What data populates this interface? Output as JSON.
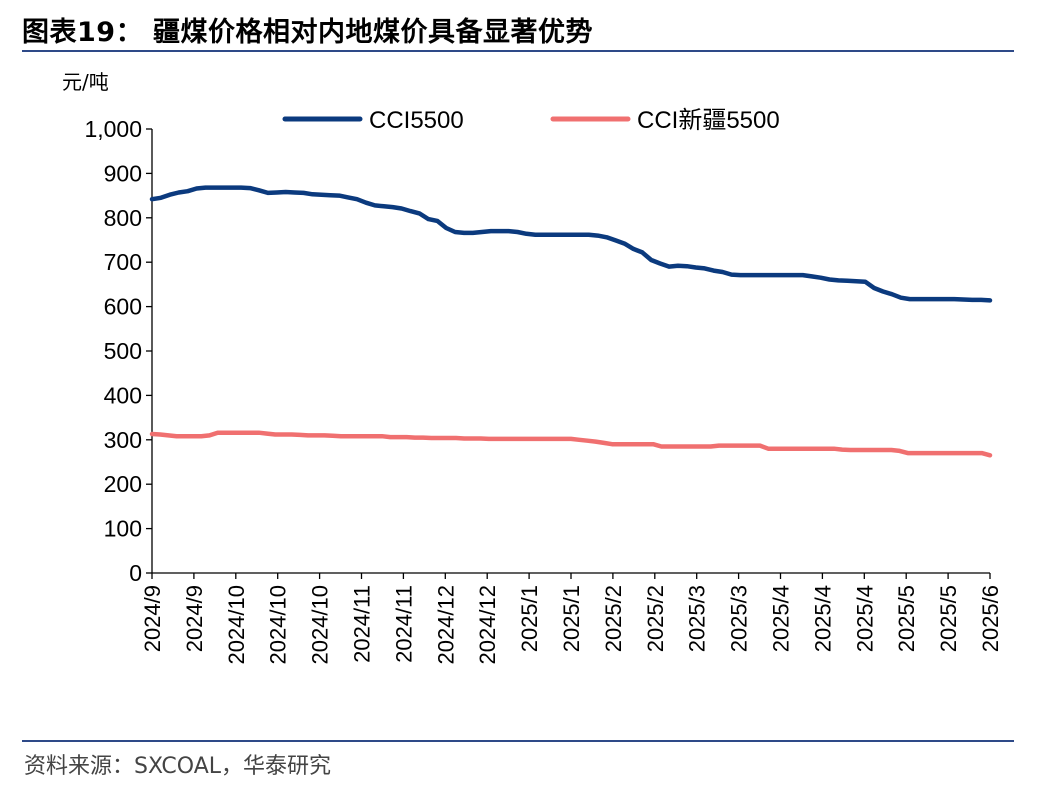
{
  "title": "图表19：  疆煤价格相对内地煤价具备显著优势",
  "source": "资料来源：SXCOAL，华泰研究",
  "chart_data": {
    "type": "line",
    "ylabel": "元/吨",
    "ylim": [
      0,
      1000
    ],
    "yticks": [
      0,
      100,
      200,
      300,
      400,
      500,
      600,
      700,
      800,
      900,
      1000
    ],
    "ytick_labels": [
      "0",
      "100",
      "200",
      "300",
      "400",
      "500",
      "600",
      "700",
      "800",
      "900",
      "1,000"
    ],
    "xtick_labels": [
      "2024/9",
      "2024/9",
      "2024/10",
      "2024/10",
      "2024/10",
      "2024/11",
      "2024/11",
      "2024/12",
      "2024/12",
      "2025/1",
      "2025/1",
      "2025/2",
      "2025/2",
      "2025/3",
      "2025/3",
      "2025/4",
      "2025/4",
      "2025/4",
      "2025/5",
      "2025/5",
      "2025/6"
    ],
    "legend_position": "top",
    "grid": false,
    "series": [
      {
        "name": "CCI5500",
        "color": "#0b3a7e",
        "values": [
          842,
          845,
          852,
          857,
          860,
          866,
          868,
          868,
          868,
          868,
          868,
          867,
          862,
          856,
          857,
          858,
          857,
          856,
          853,
          852,
          851,
          850,
          846,
          842,
          834,
          828,
          826,
          824,
          821,
          815,
          810,
          797,
          793,
          777,
          768,
          766,
          766,
          768,
          770,
          770,
          770,
          768,
          764,
          762,
          762,
          762,
          762,
          762,
          762,
          762,
          760,
          756,
          749,
          742,
          730,
          722,
          705,
          697,
          690,
          692,
          691,
          688,
          686,
          681,
          678,
          672,
          671,
          671,
          671,
          671,
          671,
          671,
          671,
          671,
          668,
          665,
          661,
          659,
          658,
          657,
          656,
          642,
          634,
          628,
          620,
          617,
          617,
          617,
          617,
          617,
          617,
          616,
          615,
          615,
          614
        ]
      },
      {
        "name": "CCI新疆5500",
        "color": "#f07070",
        "values": [
          313,
          312,
          310,
          308,
          308,
          308,
          308,
          310,
          316,
          316,
          316,
          316,
          316,
          316,
          314,
          312,
          312,
          312,
          311,
          310,
          310,
          310,
          309,
          308,
          308,
          308,
          308,
          308,
          308,
          306,
          306,
          306,
          305,
          305,
          304,
          304,
          304,
          304,
          303,
          303,
          303,
          302,
          302,
          302,
          302,
          302,
          302,
          302,
          302,
          302,
          302,
          302,
          300,
          298,
          296,
          293,
          290,
          290,
          290,
          290,
          290,
          290,
          285,
          285,
          285,
          285,
          285,
          285,
          285,
          287,
          287,
          287,
          287,
          287,
          287,
          280,
          280,
          280,
          280,
          280,
          280,
          280,
          280,
          280,
          278,
          277,
          277,
          277,
          277,
          277,
          277,
          275,
          270,
          270,
          270,
          270,
          270,
          270,
          270,
          270,
          270,
          270,
          265
        ]
      }
    ]
  }
}
